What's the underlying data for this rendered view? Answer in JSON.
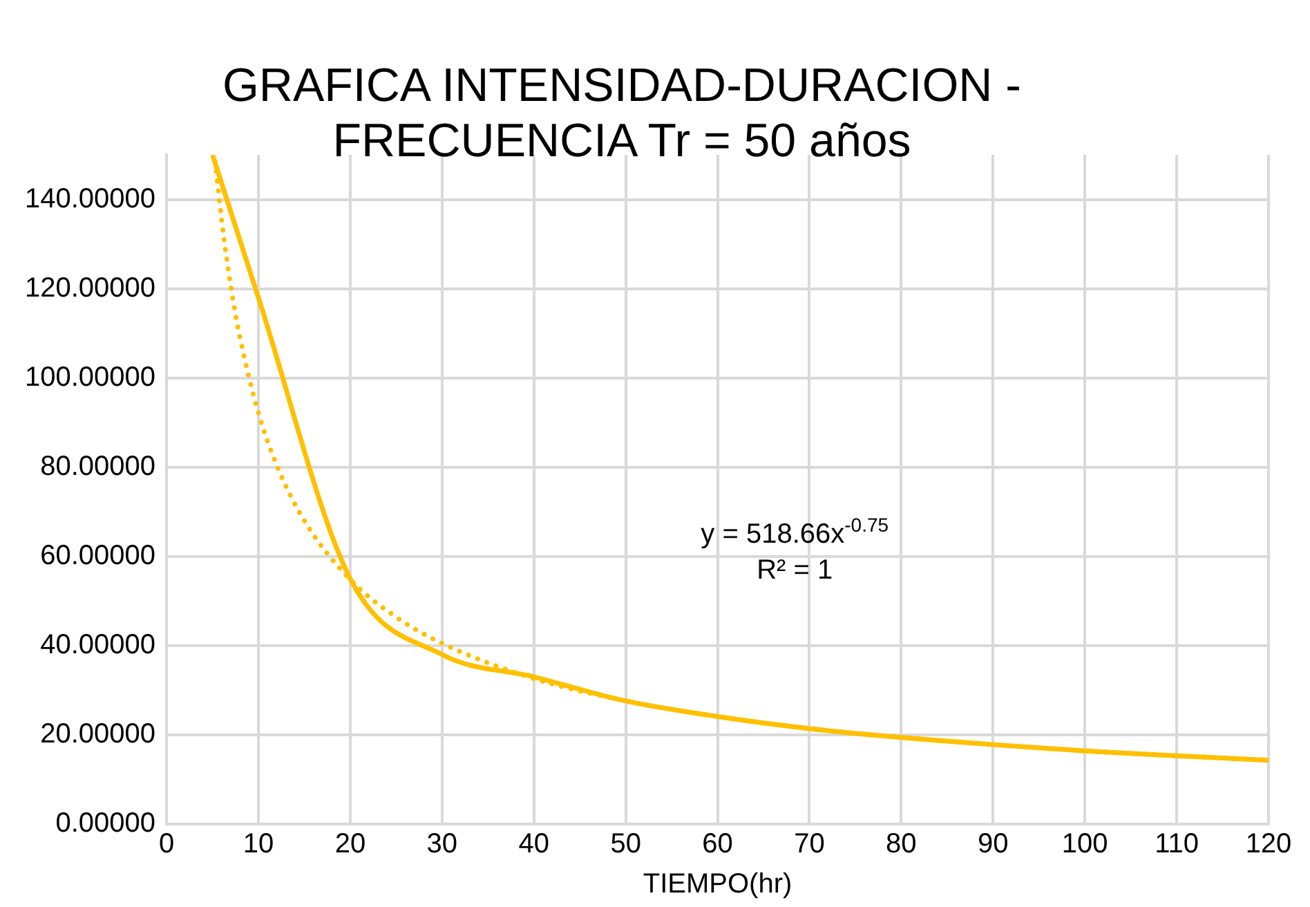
{
  "chart_data": {
    "type": "line",
    "title": "GRAFICA INTENSIDAD-DURACION - FRECUENCIA Tr = 50 años",
    "xlabel": "TIEMPO(hr)",
    "xlim": [
      0,
      120
    ],
    "xticks": [
      0,
      10,
      20,
      30,
      40,
      50,
      60,
      70,
      80,
      90,
      100,
      110,
      120
    ],
    "ylim": [
      0,
      150
    ],
    "yticks": [
      {
        "value": 0,
        "label": "0.00000"
      },
      {
        "value": 20,
        "label": "20.00000"
      },
      {
        "value": 40,
        "label": "40.00000"
      },
      {
        "value": 60,
        "label": "60.00000"
      },
      {
        "value": 80,
        "label": "80.00000"
      },
      {
        "value": 100,
        "label": "100.00000"
      },
      {
        "value": 120,
        "label": "120.00000"
      },
      {
        "value": 140,
        "label": "140.00000"
      }
    ],
    "grid": true,
    "legend": false,
    "marker": "none",
    "series": [
      {
        "type": "line",
        "color": "#ffc000",
        "line_style": "solid",
        "x": [
          5,
          10,
          20,
          30,
          40,
          50,
          60,
          70,
          80,
          90,
          100,
          110,
          120
        ],
        "values": [
          150,
          118,
          55,
          38,
          33,
          27.6,
          24.1,
          21.4,
          19.4,
          17.8,
          16.4,
          15.3,
          14.3
        ]
      },
      {
        "type": "line",
        "color": "#ffc000",
        "line_style": "dotted",
        "x": [
          5.3,
          6,
          7,
          8,
          10,
          12,
          15,
          20,
          25,
          30,
          40,
          50,
          60,
          70,
          80,
          90,
          100,
          110,
          120
        ],
        "values": [
          148.5,
          135.3,
          120.5,
          109,
          92.2,
          80.4,
          68,
          54.8,
          46.4,
          40.5,
          32.6,
          27.6,
          24.1,
          21.4,
          19.4,
          17.8,
          16.4,
          15.3,
          14.3
        ]
      }
    ],
    "annotations": [
      "y = 518.66x$^{-0.75}$",
      "R² = 1"
    ]
  }
}
